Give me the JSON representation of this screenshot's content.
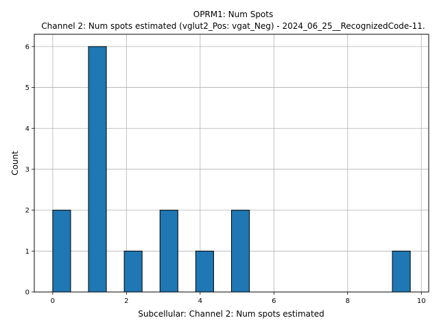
{
  "chart_data": {
    "type": "bar",
    "title": "OPRM1: Num Spots",
    "subtitle": "Channel 2: Num spots estimated (vglut2_Pos: vgat_Neg) - 2024_06_25__RecognizedCode-11.",
    "xlabel": "Subcellular: Channel 2: Num spots estimated",
    "ylabel": "Count",
    "xlim": [
      -0.5,
      10.2
    ],
    "ylim": [
      0,
      6.3
    ],
    "xticks": [
      0,
      2,
      4,
      6,
      8,
      10
    ],
    "yticks": [
      0,
      1,
      2,
      3,
      4,
      5,
      6
    ],
    "grid": true,
    "bin_width": 0.485,
    "bins": [
      {
        "start": 0.0,
        "count": 2
      },
      {
        "start": 0.97,
        "count": 6
      },
      {
        "start": 1.94,
        "count": 1
      },
      {
        "start": 2.91,
        "count": 2
      },
      {
        "start": 3.88,
        "count": 1
      },
      {
        "start": 4.85,
        "count": 2
      },
      {
        "start": 9.215,
        "count": 1
      }
    ],
    "colors": {
      "bar": "#1f77b4",
      "edge": "#000000",
      "grid": "#b0b0b0"
    }
  }
}
